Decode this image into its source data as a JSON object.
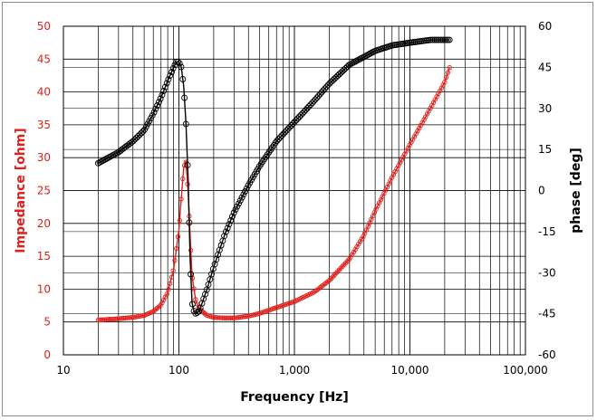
{
  "chart_data": {
    "type": "line",
    "title": "",
    "xlabel": "Frequency [Hz]",
    "ylabel_left": "Impedance [ohm]",
    "ylabel_right": "phase [deg]",
    "x_scale": "log",
    "xlim": [
      10,
      100000
    ],
    "ylim_left": [
      0,
      50
    ],
    "ylim_right": [
      -60,
      60
    ],
    "grid": true,
    "x_tick_labels": [
      "10",
      "100",
      "1,000",
      "10,000",
      "100,000"
    ],
    "x_tick_values": [
      10,
      100,
      1000,
      10000,
      100000
    ],
    "y_left_tick_labels": [
      "0",
      "5",
      "10",
      "15",
      "20",
      "25",
      "30",
      "35",
      "40",
      "45",
      "50"
    ],
    "y_left_tick_values": [
      0,
      5,
      10,
      15,
      20,
      25,
      30,
      35,
      40,
      45,
      50
    ],
    "y_right_tick_labels": [
      "-60",
      "-45",
      "-30",
      "-15",
      "0",
      "15",
      "30",
      "45",
      "60"
    ],
    "y_right_tick_values": [
      -60,
      -45,
      -30,
      -15,
      0,
      15,
      30,
      45,
      60
    ],
    "colors": {
      "impedance": "#e0201c",
      "phase": "#000000",
      "grid": "#000000",
      "frame": "#8c8c8c"
    },
    "series": [
      {
        "name": "Impedance [ohm]",
        "axis": "left",
        "x": [
          20,
          30,
          40,
          50,
          60,
          70,
          80,
          90,
          100,
          105,
          110,
          115,
          120,
          125,
          130,
          140,
          150,
          175,
          200,
          250,
          300,
          400,
          500,
          700,
          1000,
          1500,
          2000,
          3000,
          4000,
          5000,
          7000,
          10000,
          15000,
          20000,
          22000
        ],
        "values": [
          5.3,
          5.5,
          5.7,
          6.0,
          6.6,
          7.6,
          9.5,
          13.0,
          19.0,
          24.0,
          28.5,
          29.5,
          25.0,
          18.0,
          12.0,
          8.2,
          7.0,
          6.0,
          5.7,
          5.6,
          5.6,
          5.9,
          6.3,
          7.2,
          8.1,
          9.6,
          11.3,
          14.6,
          18.2,
          21.9,
          27.0,
          32.0,
          37.5,
          41.5,
          43.7
        ]
      },
      {
        "name": "phase [deg]",
        "axis": "right",
        "x": [
          20,
          30,
          40,
          50,
          60,
          70,
          80,
          90,
          95,
          100,
          105,
          110,
          115,
          120,
          125,
          130,
          135,
          140,
          150,
          175,
          200,
          250,
          300,
          400,
          500,
          700,
          1000,
          1500,
          2000,
          3000,
          5000,
          7000,
          10000,
          15000,
          20000,
          22000
        ],
        "values": [
          10,
          14,
          18,
          22,
          28,
          34,
          40,
          45,
          47,
          47,
          45,
          38,
          25,
          5,
          -25,
          -41,
          -44,
          -45,
          -44,
          -36,
          -28,
          -16,
          -8,
          2,
          9,
          18,
          25,
          33,
          39,
          46,
          51,
          53,
          54,
          55,
          55,
          55
        ]
      }
    ]
  }
}
